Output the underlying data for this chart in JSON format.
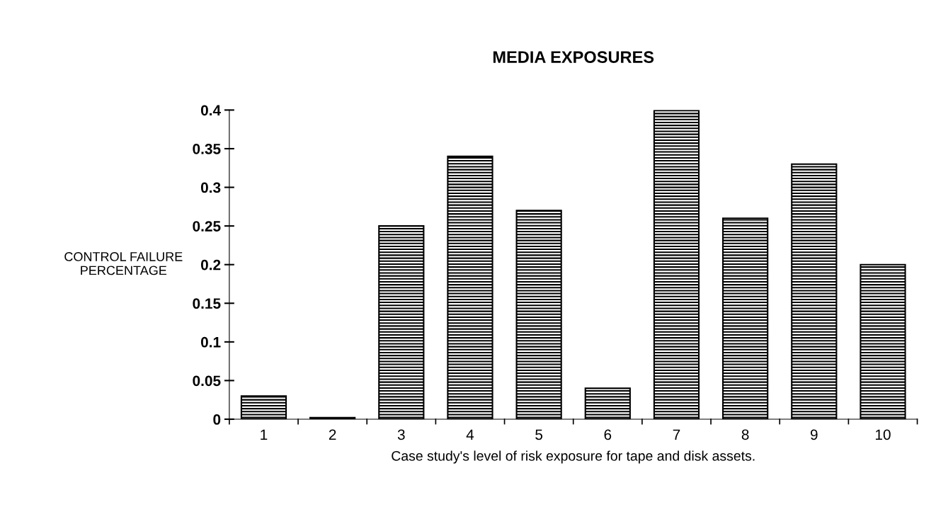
{
  "chart_data": {
    "type": "bar",
    "title": "MEDIA EXPOSURES",
    "xlabel": "Case study's level of risk exposure for tape and disk assets.",
    "ylabel": "CONTROL FAILURE\nPERCENTAGE",
    "categories": [
      "1",
      "2",
      "3",
      "4",
      "5",
      "6",
      "7",
      "8",
      "9",
      "10"
    ],
    "values": [
      0.03,
      0.002,
      0.25,
      0.34,
      0.27,
      0.04,
      0.4,
      0.26,
      0.33,
      0.2
    ],
    "color": "#000000",
    "ylim": [
      0,
      0.4
    ],
    "yticks": [
      {
        "value": 0,
        "label": "0"
      },
      0.05,
      0.1,
      0.15,
      0.2,
      0.25,
      0.3,
      0.35,
      0.4
    ],
    "grid": false,
    "legend": false
  }
}
